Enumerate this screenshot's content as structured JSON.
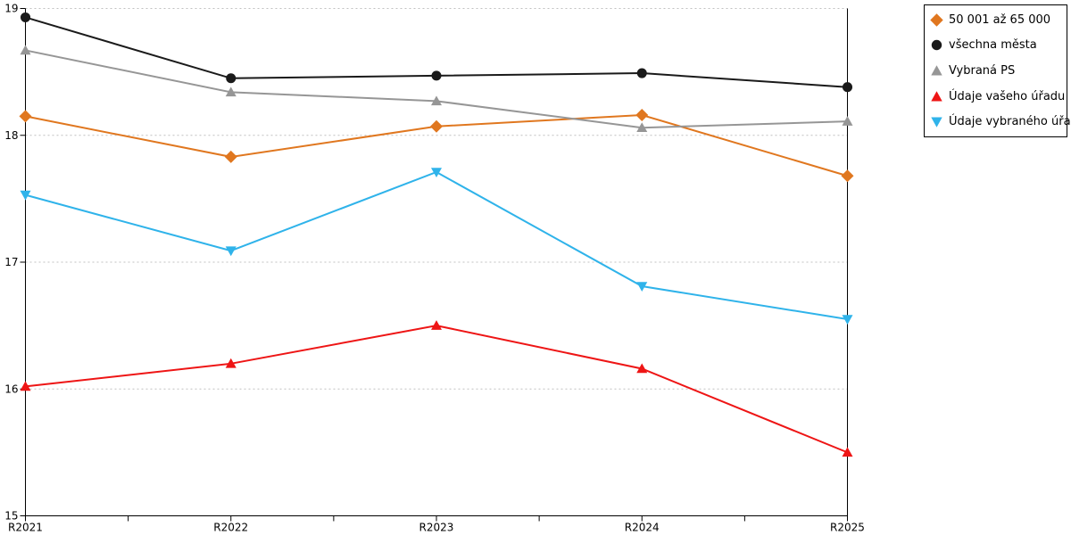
{
  "chart_data": {
    "type": "line",
    "title": "",
    "xlabel": "",
    "ylabel": "",
    "categories": [
      "R2021",
      "R2022",
      "R2023",
      "R2024",
      "R2025"
    ],
    "ylim": [
      15,
      19
    ],
    "yticks": [
      15,
      16,
      17,
      18,
      19
    ],
    "grid": "horizontal-dotted",
    "gridline_color": "#c0c0c0",
    "axis_color": "#000000",
    "legend_position": "top-right-outside",
    "series": [
      {
        "name": "50 001 až 65 000",
        "marker": "diamond",
        "color": "#e0771f",
        "values": [
          18.15,
          17.83,
          18.07,
          18.16,
          17.68
        ]
      },
      {
        "name": "všechna města",
        "marker": "circle",
        "color": "#1a1a1a",
        "values": [
          18.93,
          18.45,
          18.47,
          18.49,
          18.38
        ]
      },
      {
        "name": "Vybraná PS",
        "marker": "triangle-up",
        "color": "#969696",
        "values": [
          18.67,
          18.34,
          18.27,
          18.06,
          18.11
        ]
      },
      {
        "name": "Údaje vašeho úřadu",
        "marker": "triangle-up",
        "color": "#ee1515",
        "values": [
          16.02,
          16.2,
          16.5,
          16.16,
          15.5
        ]
      },
      {
        "name": "Údaje vybraného úřadu",
        "marker": "triangle-down",
        "color": "#2fb3ea",
        "values": [
          17.53,
          17.09,
          17.71,
          16.81,
          16.55
        ]
      }
    ]
  }
}
